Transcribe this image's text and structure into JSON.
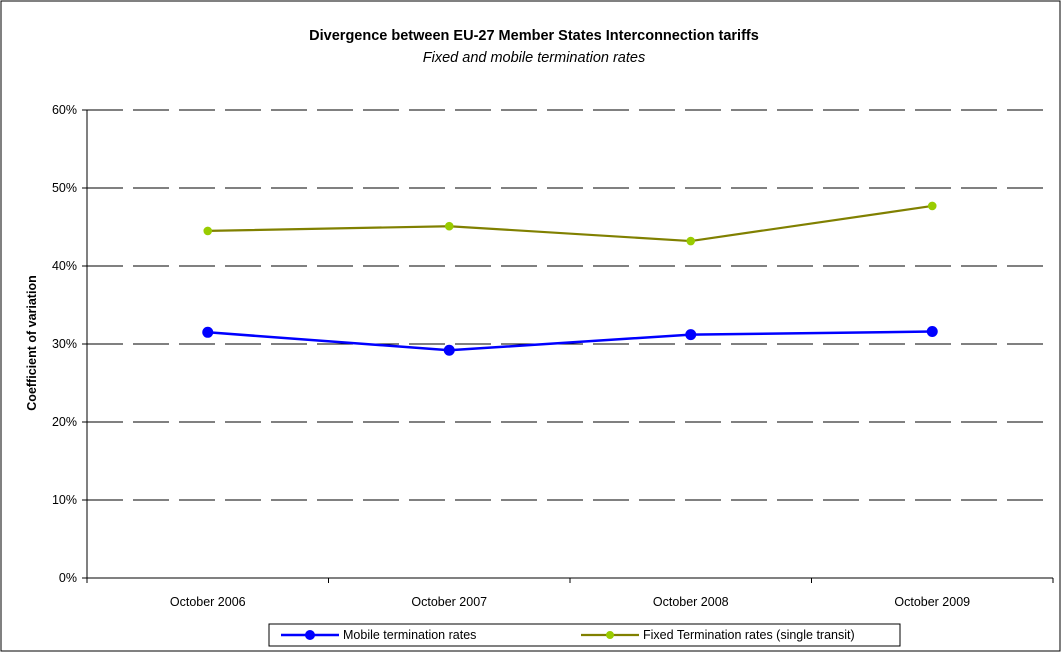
{
  "chart_data": {
    "type": "line",
    "title": "Divergence between EU-27 Member States Interconnection tariffs",
    "subtitle": "Fixed and mobile termination rates",
    "xlabel": "",
    "ylabel": "Coefficient of variation",
    "categories": [
      "October 2006",
      "October 2007",
      "October 2008",
      "October 2009"
    ],
    "ylim": [
      0,
      0.6
    ],
    "yticks": [
      0,
      0.1,
      0.2,
      0.3,
      0.4,
      0.5,
      0.6
    ],
    "ytick_labels": [
      "0%",
      "10%",
      "20%",
      "30%",
      "40%",
      "50%",
      "60%"
    ],
    "grid": "horizontal dashed",
    "legend_position": "bottom",
    "series": [
      {
        "name": "Mobile termination rates",
        "color": "#0000FF",
        "marker": "circle",
        "values": [
          0.315,
          0.292,
          0.312,
          0.316
        ]
      },
      {
        "name": "Fixed Termination rates (single transit)",
        "color": "#808000",
        "marker_color": "#99CC00",
        "marker": "circle",
        "values": [
          0.445,
          0.451,
          0.432,
          0.477
        ]
      }
    ]
  }
}
